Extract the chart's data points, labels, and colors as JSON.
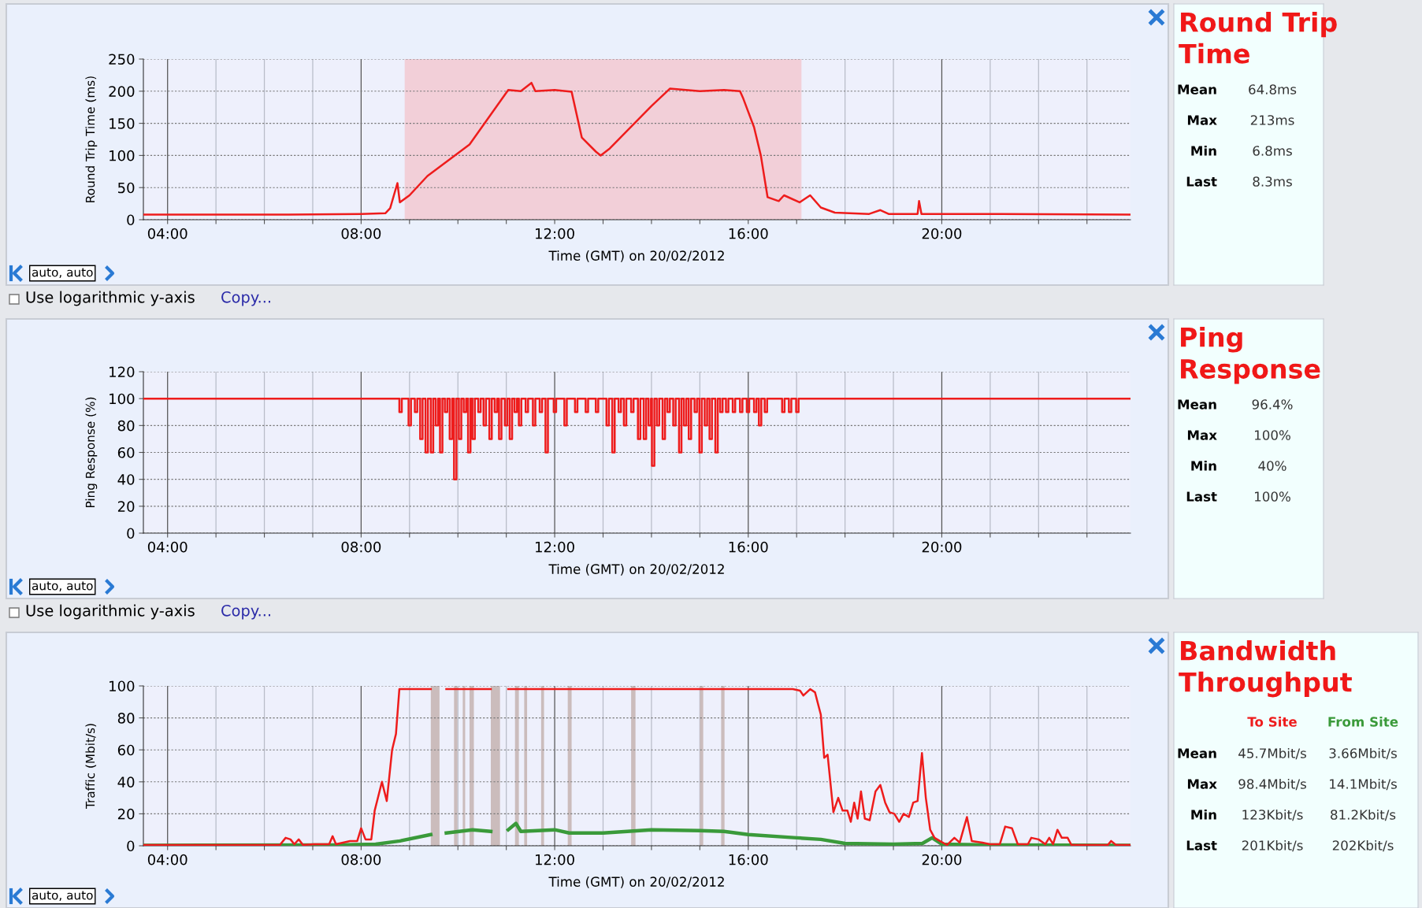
{
  "chart_data": [
    {
      "type": "line",
      "xlabel": "Time (GMT) on 20/02/2012",
      "ylabel": "Round Trip Time (ms)",
      "xlim": [
        3.5,
        23.9
      ],
      "ylim": [
        0,
        250
      ],
      "yticks": [
        0,
        50,
        100,
        150,
        200,
        250
      ],
      "xticks": [
        {
          "value": 4,
          "label": "04:00"
        },
        {
          "value": 5,
          "label": null
        },
        {
          "value": 6,
          "label": null
        },
        {
          "value": 7,
          "label": null
        },
        {
          "value": 8,
          "label": "08:00"
        },
        {
          "value": 9,
          "label": null
        },
        {
          "value": 10,
          "label": null
        },
        {
          "value": 11,
          "label": null
        },
        {
          "value": 12,
          "label": "12:00"
        },
        {
          "value": 13,
          "label": null
        },
        {
          "value": 14,
          "label": null
        },
        {
          "value": 15,
          "label": null
        },
        {
          "value": 16,
          "label": "16:00"
        },
        {
          "value": 17,
          "label": null
        },
        {
          "value": 18,
          "label": null
        },
        {
          "value": 19,
          "label": null
        },
        {
          "value": 20,
          "label": "20:00"
        },
        {
          "value": 21,
          "label": null
        },
        {
          "value": 22,
          "label": null
        },
        {
          "value": 23,
          "label": null
        }
      ],
      "grid": true,
      "legend": false,
      "bands": [
        {
          "axis": "x",
          "from": 8.9,
          "to": 17.1,
          "color": "#f2cfd8"
        }
      ],
      "annotations": [
        "auto, auto",
        "Use logarithmic y-axis",
        "Copy..."
      ],
      "series": [
        {
          "color": "#ee1c1c",
          "x": [
            3.5,
            5,
            6.5,
            8,
            8.5,
            8.6,
            8.75,
            8.8,
            9.0,
            9.37,
            10.24,
            11.04,
            11.3,
            11.52,
            11.6,
            12.0,
            12.35,
            12.56,
            12.85,
            12.95,
            13.14,
            14.0,
            14.38,
            15.0,
            15.5,
            15.83,
            15.9,
            16.12,
            16.26,
            16.4,
            16.63,
            16.74,
            17.06,
            17.28,
            17.5,
            17.79,
            18.5,
            18.73,
            18.9,
            19.5,
            19.53,
            19.58,
            21,
            23.9
          ],
          "values": [
            8,
            8,
            8,
            9,
            10,
            18,
            57,
            27,
            38,
            68,
            117,
            202,
            200,
            213,
            200,
            202,
            199,
            128,
            106,
            100,
            111,
            177,
            204,
            200,
            202,
            200,
            188,
            144,
            100,
            35,
            29,
            38,
            27,
            38,
            19,
            11,
            9,
            15,
            9,
            9,
            29,
            9,
            9,
            8
          ]
        }
      ]
    },
    {
      "type": "other",
      "title": "Round Trip Time",
      "categories": [
        "Mean",
        "Max",
        "Min",
        "Last"
      ],
      "annotations": [
        "64.8ms",
        "213ms",
        "6.8ms",
        "8.3ms"
      ]
    },
    {
      "type": "step",
      "xlabel": "Time (GMT) on 20/02/2012",
      "ylabel": "Ping Response (%)",
      "xlim": [
        3.5,
        23.9
      ],
      "ylim": [
        0,
        120
      ],
      "yticks": [
        0,
        20,
        40,
        60,
        80,
        100,
        120
      ],
      "xticks": [
        {
          "value": 4,
          "label": "04:00"
        },
        {
          "value": 5,
          "label": null
        },
        {
          "value": 6,
          "label": null
        },
        {
          "value": 7,
          "label": null
        },
        {
          "value": 8,
          "label": "08:00"
        },
        {
          "value": 9,
          "label": null
        },
        {
          "value": 10,
          "label": null
        },
        {
          "value": 11,
          "label": null
        },
        {
          "value": 12,
          "label": "12:00"
        },
        {
          "value": 13,
          "label": null
        },
        {
          "value": 14,
          "label": null
        },
        {
          "value": 15,
          "label": null
        },
        {
          "value": 16,
          "label": "16:00"
        },
        {
          "value": 17,
          "label": null
        },
        {
          "value": 18,
          "label": null
        },
        {
          "value": 19,
          "label": null
        },
        {
          "value": 20,
          "label": "20:00"
        },
        {
          "value": 21,
          "label": null
        },
        {
          "value": 22,
          "label": null
        },
        {
          "value": 23,
          "label": null
        }
      ],
      "grid": true,
      "legend": false,
      "annotations": [
        "auto, auto",
        "Use logarithmic y-axis",
        "Copy..."
      ],
      "series": [
        {
          "color": "#ee1c1c",
          "x": [
            3.5,
            8.79,
            8.84,
            8.98,
            9.03,
            9.11,
            9.16,
            9.22,
            9.27,
            9.33,
            9.38,
            9.44,
            9.49,
            9.54,
            9.59,
            9.63,
            9.68,
            9.73,
            9.78,
            9.83,
            9.88,
            9.92,
            9.97,
            10.02,
            10.07,
            10.12,
            10.17,
            10.21,
            10.26,
            10.3,
            10.35,
            10.42,
            10.47,
            10.53,
            10.58,
            10.65,
            10.7,
            10.76,
            10.81,
            10.85,
            10.9,
            10.97,
            11.02,
            11.07,
            11.12,
            11.17,
            11.22,
            11.26,
            11.31,
            11.4,
            11.45,
            11.55,
            11.6,
            11.69,
            11.74,
            11.81,
            11.86,
            11.98,
            12.03,
            12.2,
            12.25,
            12.42,
            12.47,
            12.64,
            12.69,
            12.85,
            12.9,
            13.07,
            13.12,
            13.19,
            13.24,
            13.32,
            13.37,
            13.43,
            13.48,
            13.58,
            13.63,
            13.72,
            13.77,
            13.84,
            13.89,
            13.94,
            13.99,
            14.01,
            14.06,
            14.11,
            14.16,
            14.23,
            14.28,
            14.33,
            14.38,
            14.45,
            14.5,
            14.57,
            14.62,
            14.67,
            14.72,
            14.77,
            14.82,
            14.89,
            14.94,
            14.99,
            15.04,
            15.1,
            15.15,
            15.2,
            15.25,
            15.32,
            15.37,
            15.42,
            15.47,
            15.54,
            15.59,
            15.68,
            15.73,
            15.83,
            15.88,
            15.97,
            16.02,
            16.12,
            16.17,
            16.22,
            16.27,
            16.34,
            16.39,
            16.7,
            16.75,
            16.84,
            16.89,
            16.99,
            17.04,
            23.9
          ],
          "values": [
            100,
            90,
            100,
            80,
            100,
            90,
            100,
            70,
            100,
            60,
            100,
            60,
            100,
            80,
            100,
            60,
            100,
            90,
            100,
            70,
            100,
            40,
            100,
            70,
            100,
            90,
            100,
            60,
            100,
            70,
            100,
            90,
            100,
            80,
            100,
            70,
            100,
            90,
            100,
            70,
            100,
            80,
            100,
            70,
            100,
            90,
            100,
            80,
            100,
            90,
            100,
            80,
            100,
            90,
            100,
            60,
            100,
            90,
            100,
            80,
            100,
            90,
            100,
            90,
            100,
            90,
            100,
            80,
            100,
            60,
            100,
            90,
            100,
            80,
            100,
            90,
            100,
            70,
            100,
            70,
            100,
            80,
            100,
            50,
            100,
            80,
            100,
            70,
            100,
            90,
            100,
            80,
            100,
            60,
            100,
            80,
            100,
            70,
            100,
            90,
            100,
            60,
            100,
            80,
            100,
            70,
            100,
            60,
            100,
            90,
            100,
            90,
            100,
            90,
            100,
            90,
            100,
            90,
            100,
            90,
            100,
            80,
            100,
            90,
            100,
            90,
            100,
            90,
            100,
            90,
            100,
            100
          ]
        }
      ]
    },
    {
      "type": "other",
      "title": "Ping Response",
      "categories": [
        "Mean",
        "Max",
        "Min",
        "Last"
      ],
      "annotations": [
        "96.4%",
        "100%",
        "40%",
        "100%"
      ]
    },
    {
      "type": "line",
      "xlabel": "Time (GMT) on 20/02/2012",
      "ylabel": "Traffic (Mbit/s)",
      "xlim": [
        3.5,
        23.9
      ],
      "ylim": [
        0,
        100
      ],
      "yticks": [
        0,
        20,
        40,
        60,
        80,
        100
      ],
      "xticks": [
        {
          "value": 4,
          "label": "04:00"
        },
        {
          "value": 5,
          "label": null
        },
        {
          "value": 6,
          "label": null
        },
        {
          "value": 7,
          "label": null
        },
        {
          "value": 8,
          "label": "08:00"
        },
        {
          "value": 9,
          "label": null
        },
        {
          "value": 10,
          "label": null
        },
        {
          "value": 11,
          "label": null
        },
        {
          "value": 12,
          "label": "12:00"
        },
        {
          "value": 13,
          "label": null
        },
        {
          "value": 14,
          "label": null
        },
        {
          "value": 15,
          "label": null
        },
        {
          "value": 16,
          "label": "16:00"
        },
        {
          "value": 17,
          "label": null
        },
        {
          "value": 18,
          "label": null
        },
        {
          "value": 19,
          "label": null
        },
        {
          "value": 20,
          "label": "20:00"
        },
        {
          "value": 21,
          "label": null
        },
        {
          "value": 22,
          "label": null
        },
        {
          "value": 23,
          "label": null
        }
      ],
      "grid": true,
      "legend": "right",
      "bands": [
        {
          "axis": "x",
          "from": 9.44,
          "to": 9.62,
          "color": "#cbbcbc"
        },
        {
          "axis": "x",
          "from": 9.92,
          "to": 9.99,
          "color": "#cbbcbc"
        },
        {
          "axis": "x",
          "from": 10.1,
          "to": 10.15,
          "color": "#cbbcbc"
        },
        {
          "axis": "x",
          "from": 10.24,
          "to": 10.33,
          "color": "#cbbcbc"
        },
        {
          "axis": "x",
          "from": 10.68,
          "to": 10.87,
          "color": "#cbbcbc"
        },
        {
          "axis": "x",
          "from": 11.18,
          "to": 11.26,
          "color": "#cbbcbc"
        },
        {
          "axis": "x",
          "from": 11.37,
          "to": 11.43,
          "color": "#cbbcbc"
        },
        {
          "axis": "x",
          "from": 11.72,
          "to": 11.78,
          "color": "#cbbcbc"
        },
        {
          "axis": "x",
          "from": 12.27,
          "to": 12.35,
          "color": "#cbbcbc"
        },
        {
          "axis": "x",
          "from": 13.58,
          "to": 13.67,
          "color": "#cbbcbc"
        },
        {
          "axis": "x",
          "from": 15.0,
          "to": 15.07,
          "color": "#cbbcbc"
        },
        {
          "axis": "x",
          "from": 15.44,
          "to": 15.51,
          "color": "#cbbcbc"
        }
      ],
      "annotations": [
        "auto, auto"
      ],
      "series": [
        {
          "name": "To Site",
          "color": "#ee1c1c",
          "x": [
            3.52,
            6.32,
            6.44,
            6.54,
            6.62,
            6.71,
            6.8,
            7.02,
            7.34,
            7.41,
            7.48,
            7.77,
            7.92,
            8.0,
            8.09,
            8.21,
            8.28,
            8.43,
            8.53,
            8.64,
            8.72,
            8.79,
            9.44,
            9.6,
            9.76,
            10.68,
            10.86,
            11.04,
            16.92,
            17.07,
            17.14,
            17.28,
            17.38,
            17.5,
            17.57,
            17.64,
            17.76,
            17.86,
            17.95,
            18.05,
            18.12,
            18.19,
            18.26,
            18.33,
            18.41,
            18.51,
            18.63,
            18.73,
            18.83,
            18.92,
            19.02,
            19.12,
            19.21,
            19.32,
            19.41,
            19.5,
            19.59,
            19.67,
            19.76,
            19.85,
            19.96,
            20.11,
            20.26,
            20.37,
            20.52,
            20.62,
            20.84,
            20.99,
            21.2,
            21.31,
            21.45,
            21.57,
            21.78,
            21.85,
            22.0,
            22.14,
            22.22,
            22.3,
            22.39,
            22.48,
            22.6,
            22.68,
            23.43,
            23.5,
            23.6,
            23.9
          ],
          "values": [
            0.5,
            0.5,
            5,
            4,
            1,
            4,
            0.5,
            1,
            1,
            6,
            1,
            3,
            3,
            11,
            4,
            4,
            22,
            40,
            28,
            60,
            70,
            98,
            98,
            null,
            98,
            98,
            null,
            98,
            98,
            97,
            94,
            98,
            96,
            82,
            55,
            57,
            21,
            30,
            22,
            22,
            15,
            27,
            17,
            34,
            17,
            16,
            34,
            38,
            27,
            21,
            20,
            15,
            20,
            18,
            27,
            28,
            58,
            30,
            10,
            5,
            3,
            0.5,
            5,
            2,
            18,
            3,
            2,
            1,
            1,
            12,
            11,
            1,
            1,
            5,
            4,
            1,
            5,
            1,
            10,
            5,
            5,
            0.5,
            0.5,
            3,
            0.5,
            0.5
          ]
        },
        {
          "name": "From Site",
          "color": "#3a9a3a",
          "x": [
            3.52,
            7.5,
            8.3,
            8.8,
            9.44,
            9.6,
            9.76,
            10.3,
            10.68,
            10.86,
            11.04,
            11.2,
            11.3,
            12.0,
            12.3,
            13.0,
            14.0,
            15.0,
            15.5,
            16.0,
            17.0,
            17.5,
            18.0,
            19.0,
            19.6,
            19.8,
            20.0,
            21.0,
            23.9
          ],
          "values": [
            0.3,
            0.5,
            1,
            3,
            7,
            null,
            8,
            10,
            9,
            null,
            10,
            14,
            9,
            10,
            8,
            8,
            10,
            9.5,
            9,
            7,
            5,
            4,
            1.5,
            1,
            1.5,
            5,
            1,
            0.5,
            0.3
          ]
        }
      ]
    },
    {
      "type": "other",
      "title": "Bandwidth Throughput",
      "categories": [
        "Mean",
        "Max",
        "Min",
        "Last"
      ],
      "annotations": [
        "45.7Mbit/s",
        "3.66Mbit/s",
        "98.4Mbit/s",
        "14.1Mbit/s",
        "123Kbit/s",
        "81.2Kbit/s",
        "201Kbit/s",
        "202Kbit/s"
      ]
    }
  ]
}
